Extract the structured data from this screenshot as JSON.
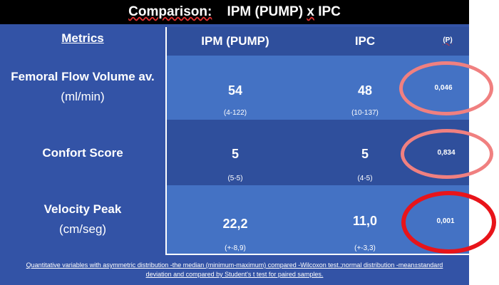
{
  "title": {
    "part1": "Comparison:",
    "part2": "IPM (PUMP)",
    "part3": "x",
    "part4": "IPC"
  },
  "table": {
    "metrics_header": "Metrics",
    "col_pump": "IPM (PUMP)",
    "col_ipc": "IPC",
    "col_p": "(P)",
    "rows": [
      {
        "label": "Femoral Flow Volume av.",
        "unit": "(ml/min)",
        "pump_value": "54",
        "pump_range": "(4-122)",
        "ipc_value": "48",
        "ipc_range": "(10-137)",
        "p_value": "0,046"
      },
      {
        "label": "Confort Score",
        "unit": "",
        "pump_value": "5",
        "pump_range": "(5-5)",
        "ipc_value": "5",
        "ipc_range": "(4-5)",
        "p_value": "0,834"
      },
      {
        "label": "Velocity Peak",
        "unit": "(cm/seg)",
        "pump_value": "22,2",
        "pump_range": "(+-8,9)",
        "ipc_value": "11,0",
        "ipc_range": "(+-3,3)",
        "p_value": "0,001"
      }
    ]
  },
  "footnote": {
    "line1": "Quantitative variables with asymmetric distribution -the median (minimum-maximum) compared -Wilcoxon test.;normal distribution -mean±standard",
    "line2": "deviation and compared by Student's t test for paired samples."
  },
  "colors": {
    "background": "#3353a6",
    "row_light": "#4472c4",
    "row_dark": "#2f4f9c",
    "title_bar": "#000000",
    "circle_pink": "#f08080",
    "circle_red": "#e8141a"
  }
}
